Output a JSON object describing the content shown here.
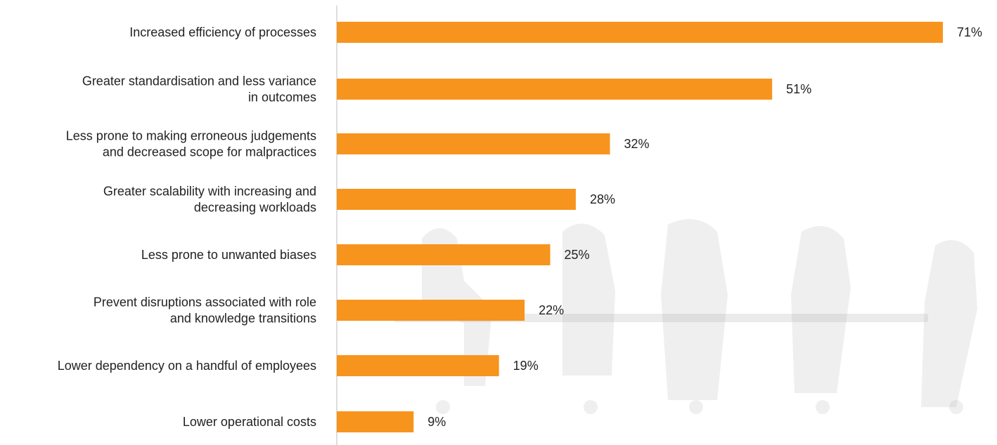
{
  "chart_data": {
    "type": "bar",
    "orientation": "horizontal",
    "bar_color": "#F7941D",
    "axis_color": "#bdbdbd",
    "xlim": [
      0,
      71
    ],
    "categories": [
      [
        "Increased efficiency of processes"
      ],
      [
        "Greater standardisation and less variance",
        "in outcomes"
      ],
      [
        "Less prone to making erroneous judgements",
        "and decreased scope for malpractices"
      ],
      [
        "Greater scalability with increasing and",
        "decreasing workloads"
      ],
      [
        "Less prone to unwanted biases"
      ],
      [
        "Prevent disruptions associated with role",
        "and knowledge transitions"
      ],
      [
        "Lower dependency on a handful of employees"
      ],
      [
        "Lower operational costs"
      ]
    ],
    "values": [
      71,
      51,
      32,
      28,
      25,
      22,
      19,
      9
    ],
    "value_labels": [
      "71%",
      "51%",
      "32%",
      "28%",
      "25%",
      "22%",
      "19%",
      "9%"
    ],
    "gridlines": false,
    "legend": "none"
  }
}
